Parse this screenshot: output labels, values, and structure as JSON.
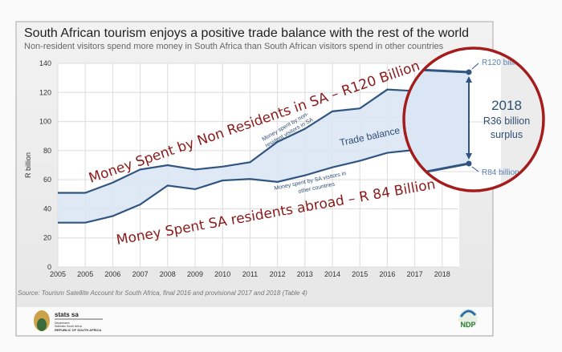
{
  "chart_data": {
    "type": "area",
    "title": "South African tourism enjoys a positive trade balance with the rest of the world",
    "subtitle": "Non-resident visitors spend more money in South Africa than South African visitors spend in other countries",
    "ylabel": "R billion",
    "xlabel": "",
    "ylim": [
      0,
      140
    ],
    "yticks": [
      0,
      20,
      40,
      60,
      80,
      100,
      120,
      140
    ],
    "categories": [
      "2005",
      "2005",
      "2006",
      "2007",
      "2008",
      "2009",
      "2010",
      "2011",
      "2012",
      "2013",
      "2014",
      "2015",
      "2016",
      "2017",
      "2018"
    ],
    "grid": true,
    "series": [
      {
        "name": "Money spent by non-resident visitors in SA",
        "values": [
          51,
          51,
          58,
          67,
          70,
          67,
          69,
          72,
          86,
          95,
          107,
          109,
          122,
          121,
          120
        ]
      },
      {
        "name": "Money spent by SA visitors in other countries",
        "values": [
          30.5,
          30.5,
          35,
          43,
          56,
          53.5,
          59.5,
          60.5,
          58.5,
          63,
          68.5,
          73,
          78.5,
          80.5,
          84
        ]
      }
    ],
    "fill_label": "Trade balance",
    "colors": {
      "line": "#2f5580",
      "fill": "#dbe6f4",
      "annotation": "#8b1a1a",
      "circle": "#a51c1c"
    },
    "inset": {
      "year": "2018",
      "surplus": "R36 billion",
      "surplus_word": "surplus",
      "upper_label": "R120 billion",
      "lower_label": "R84 billion"
    },
    "annotations": {
      "upper": "Money Spent by Non Residents in SA – R120 Billion",
      "lower": "Money Spent SA residents abroad – R 84 Billion"
    },
    "upper_line_label": [
      "Money spent by non-",
      "resident visitors in SA"
    ],
    "lower_line_label": [
      "Money spent by SA visitors in",
      "other countries"
    ],
    "source": "Source: Tourism Satellite Account for South Africa, final 2016 and provisional 2017 and 2018 (Table 4)"
  },
  "footer": {
    "logo_left": [
      "stats sa",
      "Department:",
      "Statistics South Africa",
      "REPUBLIC OF SOUTH AFRICA"
    ],
    "logo_right": "NDP"
  }
}
